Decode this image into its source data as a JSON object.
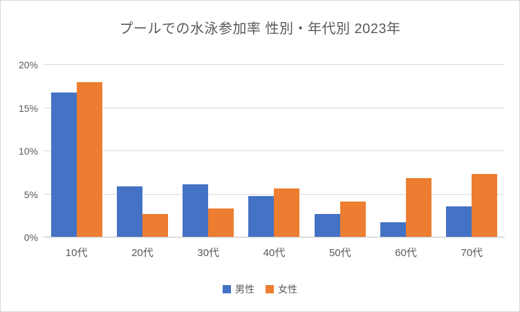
{
  "chart_data": {
    "type": "bar",
    "title": "プールでの水泳参加率 性別・年代別 2023年",
    "categories": [
      "10代",
      "20代",
      "30代",
      "40代",
      "50代",
      "60代",
      "70代"
    ],
    "series": [
      {
        "name": "男性",
        "color": "#4472C4",
        "values": [
          16.8,
          5.9,
          6.2,
          4.8,
          2.7,
          1.8,
          3.6
        ]
      },
      {
        "name": "女性",
        "color": "#ED7D31",
        "values": [
          18.0,
          2.7,
          3.4,
          5.7,
          4.2,
          6.9,
          7.4
        ]
      }
    ],
    "xlabel": "",
    "ylabel": "",
    "ylim": [
      0,
      20
    ],
    "ytick_step": 5,
    "ytick_labels": [
      "0%",
      "5%",
      "10%",
      "15%",
      "20%"
    ],
    "grid": true,
    "legend_position": "bottom"
  },
  "colors": {
    "bar_male": "#4472C4",
    "bar_female": "#ED7D31",
    "gridline": "#D9D9D9",
    "axis_line": "#BFBFBF",
    "text": "#595959",
    "border": "#D6D6D6",
    "background": "#FFFFFF"
  }
}
